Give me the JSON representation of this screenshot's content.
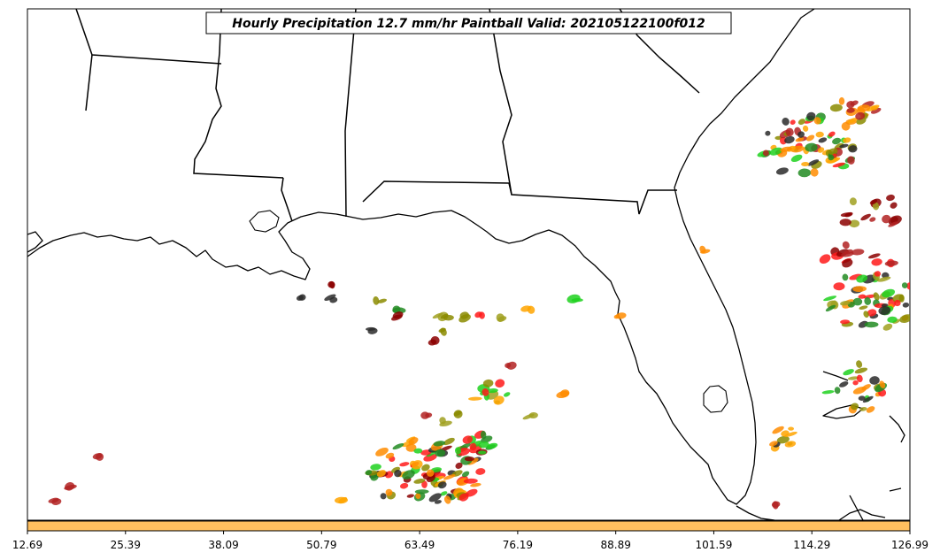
{
  "title": "Hourly Precipitation 12.7 mm/hr Paintball Valid: 202105122100f012",
  "colorbar": {
    "ticks": [
      "12.69",
      "25.39",
      "38.09",
      "50.79",
      "63.49",
      "76.19",
      "88.89",
      "101.59",
      "114.29",
      "126.99"
    ],
    "fill_color": "#ffbf5f"
  },
  "paintball_colors": [
    "#2a2a2a",
    "#8b0000",
    "#b22222",
    "#ff1a1a",
    "#ff8c00",
    "#ffa500",
    "#1fd11f",
    "#228b22",
    "#8b8b00",
    "#a0a020"
  ]
}
